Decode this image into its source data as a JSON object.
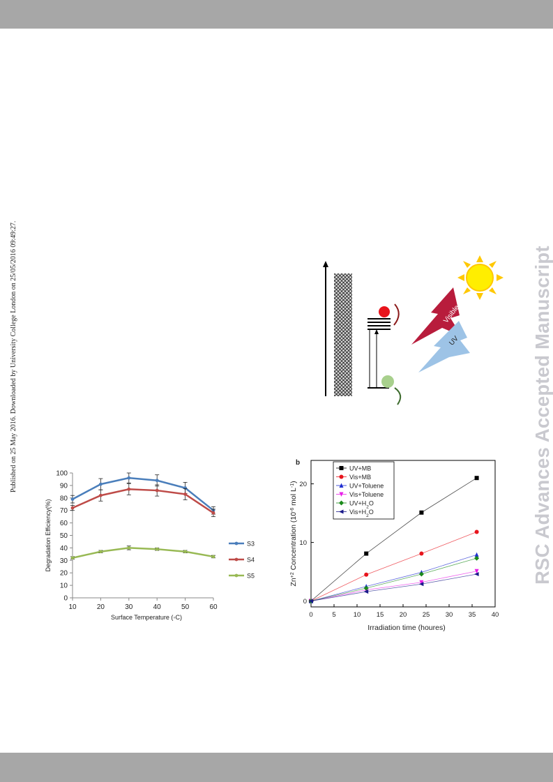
{
  "page": {
    "sidebar_note": "Published on 25 May 2016. Downloaded by University College London on 25/05/2016 09:49:27.",
    "watermark": "RSC Advances Accepted Manuscript"
  },
  "scheme": {
    "visible_label": "Visible",
    "uv_label": "UV"
  },
  "chart_data": [
    {
      "type": "line",
      "title": "",
      "xlabel": "Surface Temperature (◦C)",
      "ylabel": "Degradation  Efficiency(%)",
      "x": [
        10,
        20,
        30,
        40,
        50,
        60
      ],
      "xlim": [
        10,
        60
      ],
      "ylim": [
        0,
        100
      ],
      "xticks": [
        10,
        20,
        30,
        40,
        50,
        60
      ],
      "yticks": [
        0,
        10,
        20,
        30,
        40,
        50,
        60,
        70,
        80,
        90,
        100
      ],
      "grid": false,
      "legend": "right",
      "series": [
        {
          "name": "S3",
          "color": "#4a7ebb",
          "values": [
            79,
            91,
            96,
            94,
            88,
            70
          ],
          "errors": [
            3,
            4.5,
            4,
            4.5,
            4.5,
            3
          ]
        },
        {
          "name": "S4",
          "color": "#be4b48",
          "values": [
            72,
            82,
            87,
            86,
            83,
            68
          ],
          "errors": [
            2,
            4.5,
            4.5,
            4.5,
            4.5,
            3
          ]
        },
        {
          "name": "S5",
          "color": "#98b954",
          "values": [
            32,
            37,
            40,
            39,
            37,
            33
          ],
          "errors": [
            1,
            1,
            1.5,
            1,
            1,
            1
          ]
        }
      ]
    },
    {
      "type": "line",
      "panel_label": "b",
      "title": "",
      "xlabel": "Irradiation time (houres)",
      "ylabel": "Zn+2 Concentration (10-6 mol L-1)",
      "ylabel_parts": {
        "a": "Zn",
        "b": "+2",
        "c": " Concentration (10",
        "d": "-6",
        "e": " mol L",
        "f": "-1",
        "g": ")"
      },
      "x": [
        0,
        12,
        24,
        36
      ],
      "xlim": [
        0,
        40
      ],
      "ylim": [
        -1,
        24
      ],
      "xticks": [
        0,
        5,
        10,
        15,
        20,
        25,
        30,
        35,
        40
      ],
      "yticks": [
        0,
        10,
        20
      ],
      "grid": false,
      "legend": "top-left",
      "series": [
        {
          "name": "UV+MB",
          "color": "#000000",
          "marker": "square",
          "values": [
            0,
            8.1,
            15.1,
            21
          ]
        },
        {
          "name": "Vis+MB",
          "color": "#e8141c",
          "marker": "circle",
          "values": [
            0,
            4.5,
            8.1,
            11.8
          ]
        },
        {
          "name": "UV+Toluene",
          "color": "#1f2dd1",
          "marker": "triangle-up",
          "values": [
            0,
            2.5,
            4.9,
            7.9
          ]
        },
        {
          "name": "Vis+Toluene",
          "color": "#e81ee8",
          "marker": "triangle-down",
          "values": [
            0,
            1.9,
            3.2,
            5.1
          ]
        },
        {
          "name": "UV+H2O",
          "name_parts": {
            "a": "UV+H",
            "b": "2",
            "c": "O"
          },
          "color": "#1a8a1a",
          "marker": "diamond",
          "values": [
            0,
            2.2,
            4.6,
            7.3
          ]
        },
        {
          "name": "Vis+H2O",
          "name_parts": {
            "a": "Vis+H",
            "b": "2",
            "c": "O"
          },
          "color": "#1a1a8a",
          "marker": "triangle-left",
          "values": [
            0,
            1.6,
            2.9,
            4.6
          ]
        }
      ]
    }
  ]
}
